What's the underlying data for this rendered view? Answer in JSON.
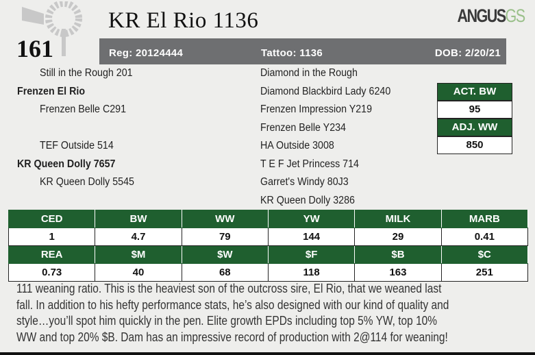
{
  "header": {
    "lot_number": "161",
    "animal_name": "KR El Rio 1136",
    "reg": "Reg: 20124444",
    "tattoo": "Tattoo: 1136",
    "dob": "DOB: 2/20/21",
    "logo_text": "ANGUS",
    "logo_suffix": "GS"
  },
  "pedigree": {
    "left": [
      {
        "name": "Still in the Rough 201",
        "bold": false,
        "indent": true
      },
      {
        "name": "Frenzen El Rio",
        "bold": true,
        "indent": false
      },
      {
        "name": "Frenzen Belle C291",
        "bold": false,
        "indent": true
      },
      {
        "name": "",
        "bold": false,
        "indent": true
      },
      {
        "name": "TEF Outside 514",
        "bold": false,
        "indent": true
      },
      {
        "name": "KR Queen Dolly 7657",
        "bold": true,
        "indent": false
      },
      {
        "name": "KR Queen Dolly 5545",
        "bold": false,
        "indent": true
      }
    ],
    "right": [
      "Diamond in the Rough",
      "Diamond Blackbird Lady 6240",
      "Frenzen Impression Y219",
      "Frenzen Belle Y234",
      "HA Outside 3008",
      "T E F Jet Princess 714",
      "Garret's Windy 80J3",
      "KR Queen Dolly 3286"
    ]
  },
  "weights": {
    "act_bw_label": "ACT. BW",
    "act_bw": "95",
    "adj_ww_label": "ADJ. WW",
    "adj_ww": "850"
  },
  "epds": {
    "row1_headers": [
      "CED",
      "BW",
      "WW",
      "YW",
      "MILK",
      "MARB"
    ],
    "row1_values": [
      "1",
      "4.7",
      "79",
      "144",
      "29",
      "0.41"
    ],
    "row2_headers": [
      "REA",
      "$M",
      "$W",
      "$F",
      "$B",
      "$C"
    ],
    "row2_values": [
      "0.73",
      "40",
      "68",
      "118",
      "163",
      "251"
    ]
  },
  "description": [
    "111 weaning ratio. This is the heaviest son of the outcross sire, El Rio, that we weaned last",
    "fall. In addition to his hefty performance stats, he’s also designed with our kind of quality and",
    "style…you’ll spot him quickly in the pen. Elite growth EPDs including top 5% YW, top 10%",
    "WW and top 20% $B. Dam has an impressive record of production with 2@114 for weaning!"
  ],
  "colors": {
    "green": "#1f5f2f",
    "bar_grey": "#6e6f71"
  }
}
